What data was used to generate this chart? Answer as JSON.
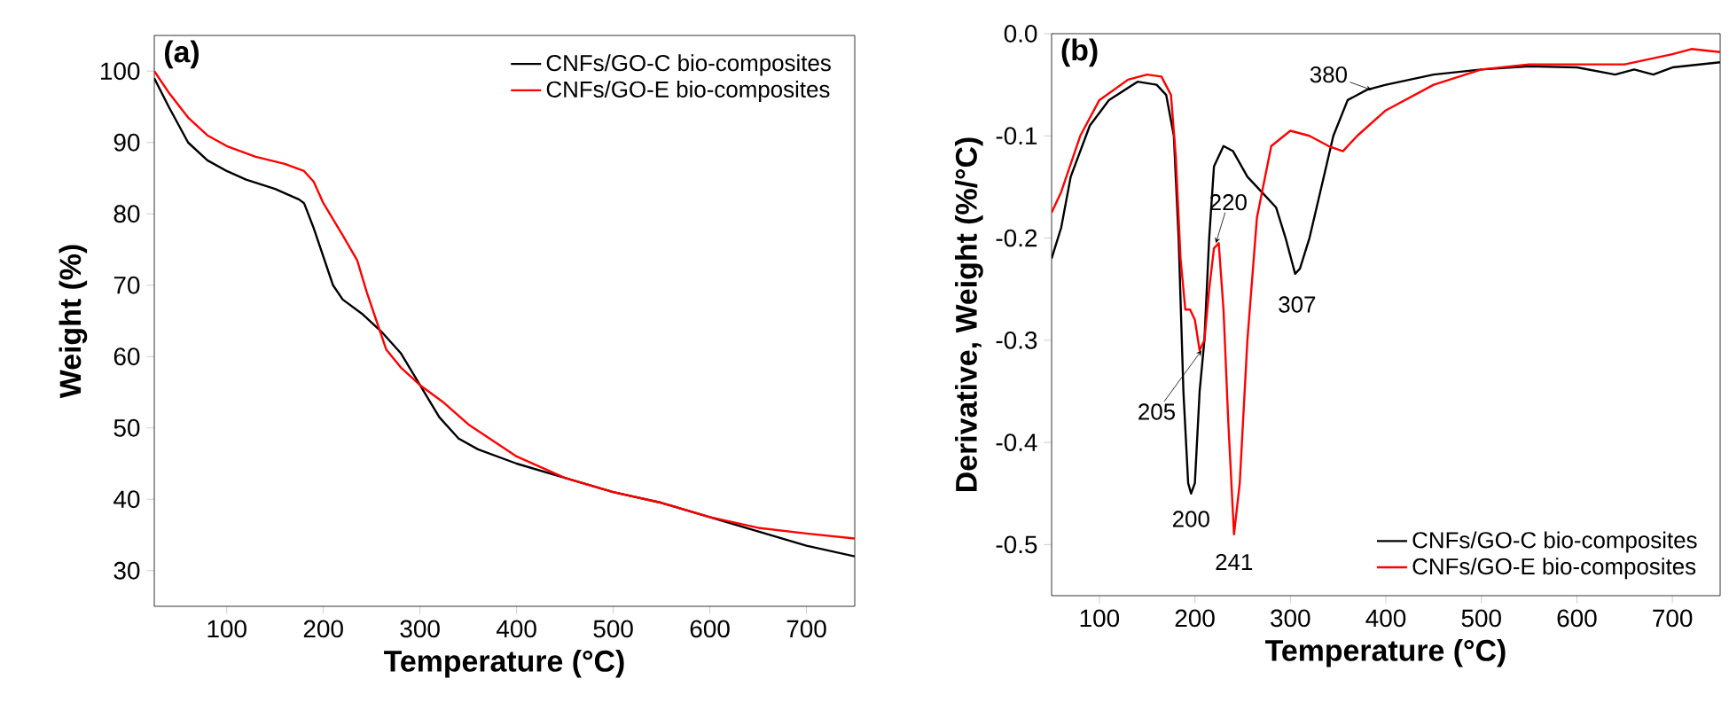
{
  "chart_data": [
    {
      "type": "line",
      "title": "(a)",
      "xlabel": "Temperature (°C)",
      "ylabel": "Weight (%)",
      "xlim": [
        25,
        750
      ],
      "ylim": [
        25,
        105
      ],
      "xticks": [
        100,
        200,
        300,
        400,
        500,
        600,
        700
      ],
      "yticks": [
        30,
        40,
        50,
        60,
        70,
        80,
        90,
        100
      ],
      "legend": "top right",
      "grid": false,
      "marker": "none",
      "line_style": "solid",
      "series": [
        {
          "name": "CNFs/GO-C bio-composites",
          "color": "#000000",
          "x": [
            25,
            40,
            60,
            80,
            100,
            120,
            150,
            175,
            180,
            190,
            200,
            210,
            220,
            240,
            260,
            280,
            300,
            320,
            340,
            360,
            400,
            450,
            500,
            550,
            600,
            650,
            700,
            750
          ],
          "values": [
            99,
            95,
            90,
            87.5,
            86,
            84.8,
            83.5,
            82,
            81.5,
            78,
            74,
            70,
            68,
            66,
            63.5,
            60.5,
            56,
            51.5,
            48.5,
            47,
            45,
            43,
            41,
            39.5,
            37.5,
            35.5,
            33.5,
            32
          ]
        },
        {
          "name": "CNFs/GO-E bio-composites",
          "color": "#ff0000",
          "x": [
            25,
            40,
            60,
            80,
            100,
            130,
            160,
            180,
            190,
            200,
            220,
            235,
            245,
            255,
            265,
            280,
            300,
            325,
            350,
            400,
            450,
            500,
            550,
            600,
            650,
            700,
            750
          ],
          "values": [
            100,
            97,
            93.5,
            91,
            89.5,
            88,
            87,
            86,
            84.5,
            81.5,
            77,
            73.5,
            69,
            65,
            61,
            58.5,
            56,
            53.5,
            50.5,
            46,
            43,
            41,
            39.5,
            37.5,
            36,
            35.2,
            34.5
          ]
        }
      ]
    },
    {
      "type": "line",
      "title": "(b)",
      "xlabel": "Temperature (°C)",
      "ylabel": "Derivative, Weight (%/°C)",
      "xlim": [
        50,
        750
      ],
      "ylim": [
        -0.55,
        0
      ],
      "xticks": [
        100,
        200,
        300,
        400,
        500,
        600,
        700
      ],
      "yticks": [
        -0.5,
        -0.4,
        -0.3,
        -0.2,
        -0.1,
        {
          "value": 0,
          "label": "0.0"
        }
      ],
      "legend": "bottom right",
      "grid": false,
      "marker": "none",
      "line_style": "solid",
      "annotations": [
        {
          "text": "200",
          "x": 196,
          "y": -0.45
        },
        {
          "text": "241",
          "x": 241,
          "y": -0.49
        },
        {
          "text": "307",
          "x": 307,
          "y": -0.235
        },
        {
          "text": "205",
          "x": 207,
          "y": -0.31
        },
        {
          "text": "220",
          "x": 222,
          "y": -0.205
        },
        {
          "text": "380",
          "x": 385,
          "y": -0.055
        }
      ],
      "series": [
        {
          "name": "CNFs/GO-C bio-composites",
          "color": "#000000",
          "x": [
            50,
            60,
            70,
            90,
            110,
            140,
            160,
            170,
            178,
            183,
            188,
            193,
            196,
            200,
            205,
            210,
            215,
            220,
            230,
            240,
            255,
            270,
            285,
            295,
            305,
            310,
            320,
            330,
            345,
            360,
            380,
            400,
            450,
            500,
            550,
            600,
            640,
            660,
            680,
            700,
            750
          ],
          "values": [
            -0.22,
            -0.19,
            -0.14,
            -0.09,
            -0.065,
            -0.047,
            -0.05,
            -0.06,
            -0.1,
            -0.2,
            -0.35,
            -0.44,
            -0.45,
            -0.44,
            -0.35,
            -0.3,
            -0.2,
            -0.13,
            -0.11,
            -0.115,
            -0.14,
            -0.155,
            -0.17,
            -0.2,
            -0.235,
            -0.23,
            -0.2,
            -0.16,
            -0.1,
            -0.065,
            -0.055,
            -0.05,
            -0.04,
            -0.035,
            -0.032,
            -0.033,
            -0.04,
            -0.035,
            -0.04,
            -0.033,
            -0.028
          ]
        },
        {
          "name": "CNFs/GO-E bio-composites",
          "color": "#ff0000",
          "x": [
            50,
            60,
            80,
            100,
            130,
            150,
            165,
            175,
            180,
            185,
            190,
            195,
            200,
            205,
            210,
            215,
            220,
            225,
            230,
            235,
            241,
            247,
            255,
            265,
            280,
            300,
            320,
            340,
            355,
            370,
            400,
            450,
            500,
            550,
            600,
            650,
            700,
            720,
            750
          ],
          "values": [
            -0.175,
            -0.155,
            -0.1,
            -0.065,
            -0.045,
            -0.04,
            -0.042,
            -0.06,
            -0.12,
            -0.22,
            -0.27,
            -0.27,
            -0.28,
            -0.31,
            -0.3,
            -0.25,
            -0.21,
            -0.205,
            -0.27,
            -0.38,
            -0.49,
            -0.44,
            -0.3,
            -0.18,
            -0.11,
            -0.095,
            -0.1,
            -0.11,
            -0.115,
            -0.1,
            -0.075,
            -0.05,
            -0.035,
            -0.03,
            -0.03,
            -0.03,
            -0.02,
            -0.015,
            -0.018
          ]
        }
      ]
    }
  ]
}
